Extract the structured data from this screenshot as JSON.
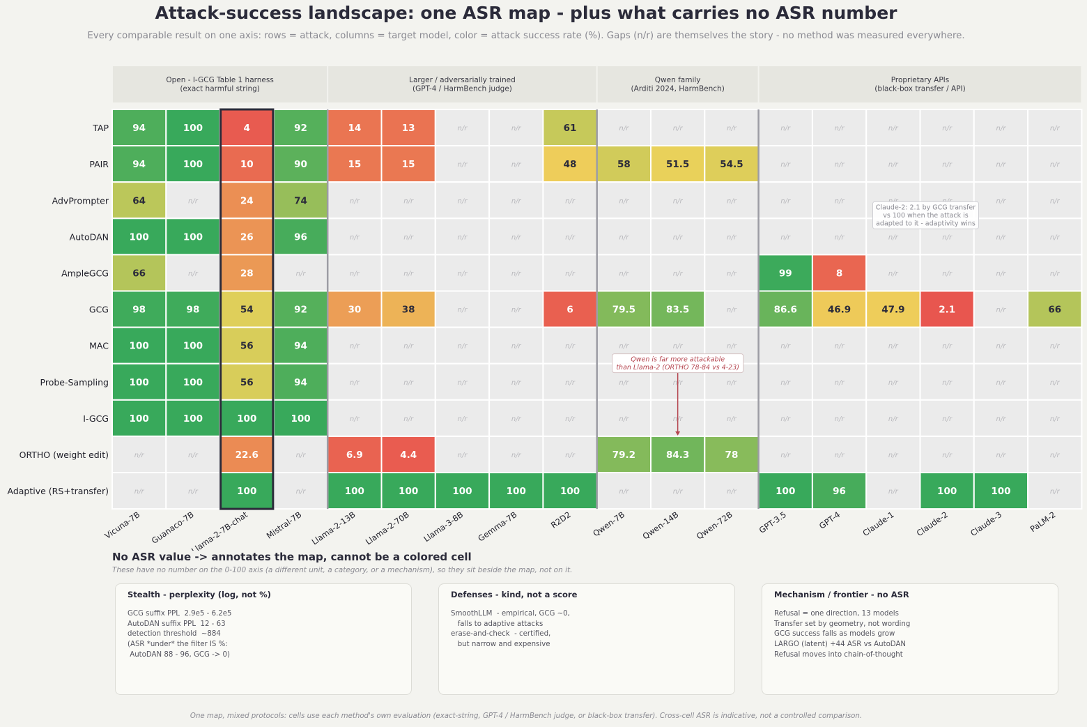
{
  "title": "Attack-success landscape: one ASR map - plus what carries no ASR number",
  "subtitle": "Every comparable result on one axis: rows = attack, columns = target model, color = attack success rate (%). Gaps (n/r) are themselves the story - no method was measured everywhere.",
  "chart_data": {
    "type": "heatmap",
    "value_unit": "attack success rate (%)",
    "scale": [
      0,
      100
    ],
    "missing_label": "n/r",
    "highlighted_column": "Llama-2-7B-chat",
    "column_groups": [
      {
        "label_lines": [
          "Open - I-GCG Table 1 harness",
          "(exact harmful string)"
        ],
        "span": 4
      },
      {
        "label_lines": [
          "Larger / adversarially trained",
          "(GPT-4 / HarmBench judge)"
        ],
        "span": 5
      },
      {
        "label_lines": [
          "Qwen family",
          "(Arditi 2024, HarmBench)"
        ],
        "span": 3
      },
      {
        "label_lines": [
          "Proprietary APIs",
          "(black-box transfer / API)"
        ],
        "span": 6
      }
    ],
    "columns": [
      "Vicuna-7B",
      "Guanaco-7B",
      "Llama-2-7B-chat",
      "Mistral-7B",
      "Llama-2-13B",
      "Llama-2-70B",
      "Llama-3-8B",
      "Gemma-7B",
      "R2D2",
      "Qwen-7B",
      "Qwen-14B",
      "Qwen-72B",
      "GPT-3.5",
      "GPT-4",
      "Claude-1",
      "Claude-2",
      "Claude-3",
      "PaLM-2"
    ],
    "rows": [
      "TAP",
      "PAIR",
      "AdvPrompter",
      "AutoDAN",
      "AmpleGCG",
      "GCG",
      "MAC",
      "Probe-Sampling",
      "I-GCG",
      "ORTHO (weight edit)",
      "Adaptive (RS+transfer)"
    ],
    "values": [
      [
        94,
        100,
        4,
        92,
        14,
        13,
        null,
        null,
        61,
        null,
        null,
        null,
        null,
        null,
        null,
        null,
        null,
        null
      ],
      [
        94,
        100,
        10,
        90,
        15,
        15,
        null,
        null,
        48,
        58,
        51.5,
        54.5,
        null,
        null,
        null,
        null,
        null,
        null
      ],
      [
        64,
        null,
        24,
        74,
        null,
        null,
        null,
        null,
        null,
        null,
        null,
        null,
        null,
        null,
        null,
        null,
        null,
        null
      ],
      [
        100,
        100,
        26,
        96,
        null,
        null,
        null,
        null,
        null,
        null,
        null,
        null,
        null,
        null,
        null,
        null,
        null,
        null
      ],
      [
        66,
        null,
        28,
        null,
        null,
        null,
        null,
        null,
        null,
        null,
        null,
        null,
        99,
        8,
        null,
        null,
        null,
        null
      ],
      [
        98,
        98,
        54,
        92,
        30,
        38,
        null,
        null,
        6,
        79.5,
        83.5,
        null,
        86.6,
        46.9,
        47.9,
        2.1,
        null,
        66
      ],
      [
        100,
        100,
        56,
        94,
        null,
        null,
        null,
        null,
        null,
        null,
        null,
        null,
        null,
        null,
        null,
        null,
        null,
        null
      ],
      [
        100,
        100,
        56,
        94,
        null,
        null,
        null,
        null,
        null,
        null,
        null,
        null,
        null,
        null,
        null,
        null,
        null,
        null
      ],
      [
        100,
        100,
        100,
        100,
        null,
        null,
        null,
        null,
        null,
        null,
        null,
        null,
        null,
        null,
        null,
        null,
        null,
        null
      ],
      [
        null,
        null,
        22.6,
        null,
        6.9,
        4.4,
        null,
        null,
        null,
        79.2,
        84.3,
        78,
        null,
        null,
        null,
        null,
        null,
        null
      ],
      [
        null,
        null,
        100,
        null,
        100,
        100,
        100,
        100,
        100,
        null,
        null,
        null,
        100,
        96,
        null,
        100,
        100,
        null
      ]
    ],
    "annotations": [
      {
        "lines": [
          "Claude-2: 2.1 by GCG transfer",
          "vs 100 when the attack is",
          "adapted to it - adaptivity wins"
        ],
        "near": "Claude-2",
        "color": "#8a8a92"
      },
      {
        "lines": [
          "Qwen is far more attackable",
          "than Llama-2 (ORTHO 78-84 vs 4-23)"
        ],
        "points_to": {
          "row": "ORTHO (weight edit)",
          "column": "Qwen-14B"
        },
        "color": "#b5454f"
      }
    ],
    "colors": {
      "low": "#e8514f",
      "mid": "#eed25a",
      "high": "#38a95b",
      "missing": "#ebebeb",
      "group_header": "#e6e6e0",
      "annotation_red": "#b5454f"
    }
  },
  "below": {
    "title": "No ASR value -> annotates the map, cannot be a colored cell",
    "subtitle": "These have no number on the 0-100 axis (a different unit, a category, or a mechanism), so they sit beside the map, not on it.",
    "boxes": [
      {
        "title": "Stealth - perplexity (log, not %)",
        "lines": [
          "GCG suffix PPL  2.9e5 - 6.2e5",
          "AutoDAN suffix PPL  12 - 63",
          "detection threshold  ~884",
          "(ASR *under* the filter IS %:",
          " AutoDAN 88 - 96, GCG -> 0)"
        ]
      },
      {
        "title": "Defenses - kind, not a score",
        "lines": [
          "SmoothLLM  - empirical, GCG ~0,",
          "   falls to adaptive attacks",
          "erase-and-check  - certified,",
          "   but narrow and expensive"
        ]
      },
      {
        "title": "Mechanism / frontier - no ASR",
        "lines": [
          "Refusal = one direction, 13 models",
          "Transfer set by geometry, not wording",
          "GCG success falls as models grow",
          "LARGO (latent) +44 ASR vs AutoDAN",
          "Refusal moves into chain-of-thought"
        ]
      }
    ]
  },
  "footnote": "One map, mixed protocols: cells use each method's own evaluation (exact-string, GPT-4 / HarmBench judge, or black-box transfer). Cross-cell ASR is indicative, not a controlled comparison."
}
